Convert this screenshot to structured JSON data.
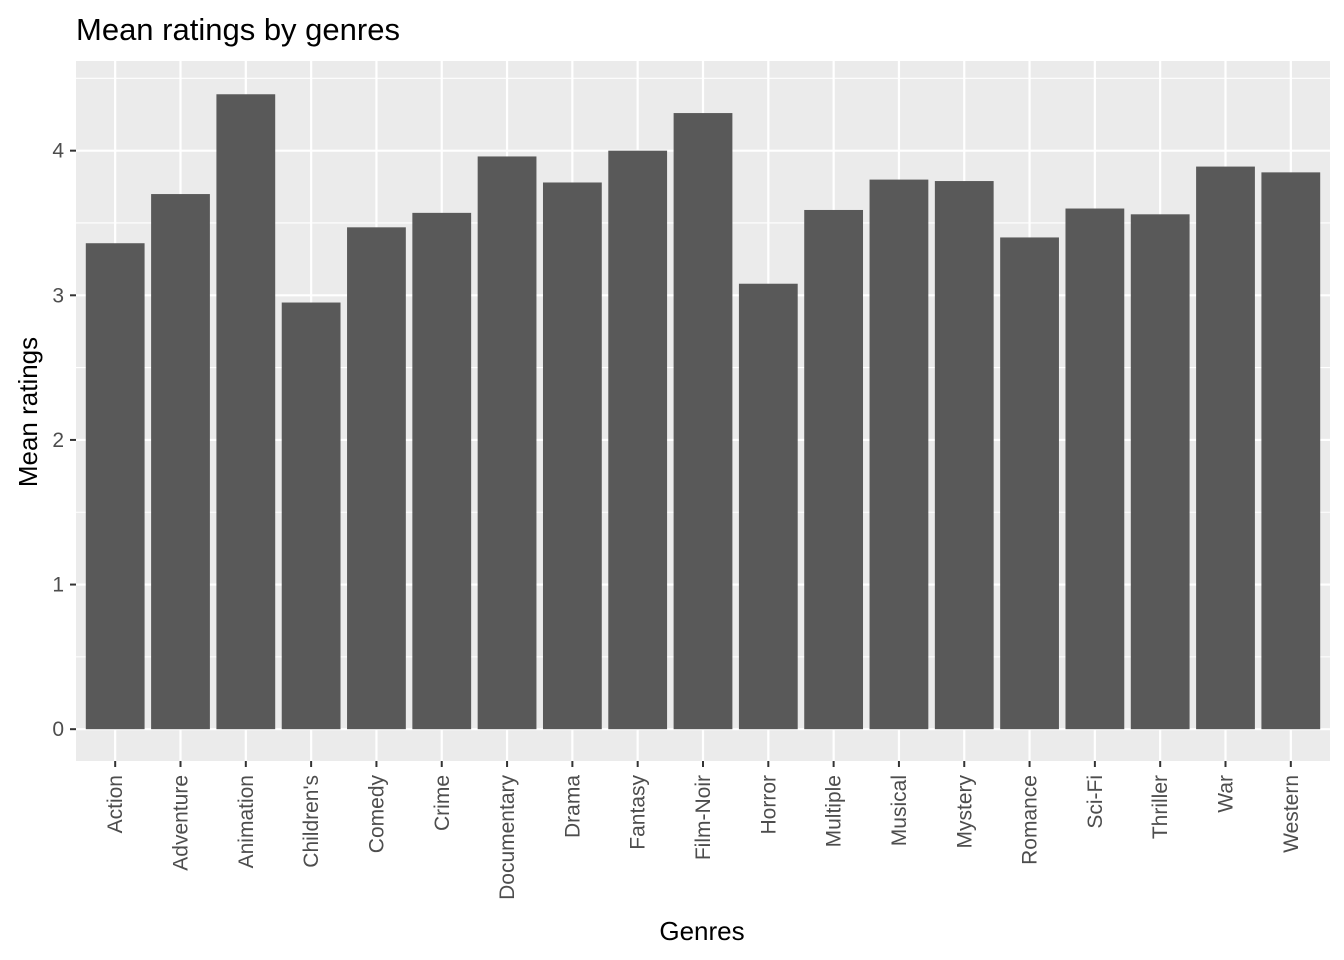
{
  "chart_data": {
    "type": "bar",
    "title": "Mean ratings by genres",
    "xlabel": "Genres",
    "ylabel": "Mean ratings",
    "categories": [
      "Action",
      "Adventure",
      "Animation",
      "Children's",
      "Comedy",
      "Crime",
      "Documentary",
      "Drama",
      "Fantasy",
      "Film-Noir",
      "Horror",
      "Multiple",
      "Musical",
      "Mystery",
      "Romance",
      "Sci-Fi",
      "Thriller",
      "War",
      "Western"
    ],
    "values": [
      3.36,
      3.7,
      4.39,
      2.95,
      3.47,
      3.57,
      3.96,
      3.78,
      4.0,
      4.26,
      3.08,
      3.59,
      3.8,
      3.79,
      3.4,
      3.6,
      3.56,
      3.89,
      3.85
    ],
    "ylim": [
      -0.22,
      4.62
    ],
    "yticks": [
      0,
      1,
      2,
      3,
      4
    ],
    "grid": true,
    "bar_color": "#595959",
    "panel_color": "#ebebeb",
    "grid_color": "#ffffff"
  }
}
